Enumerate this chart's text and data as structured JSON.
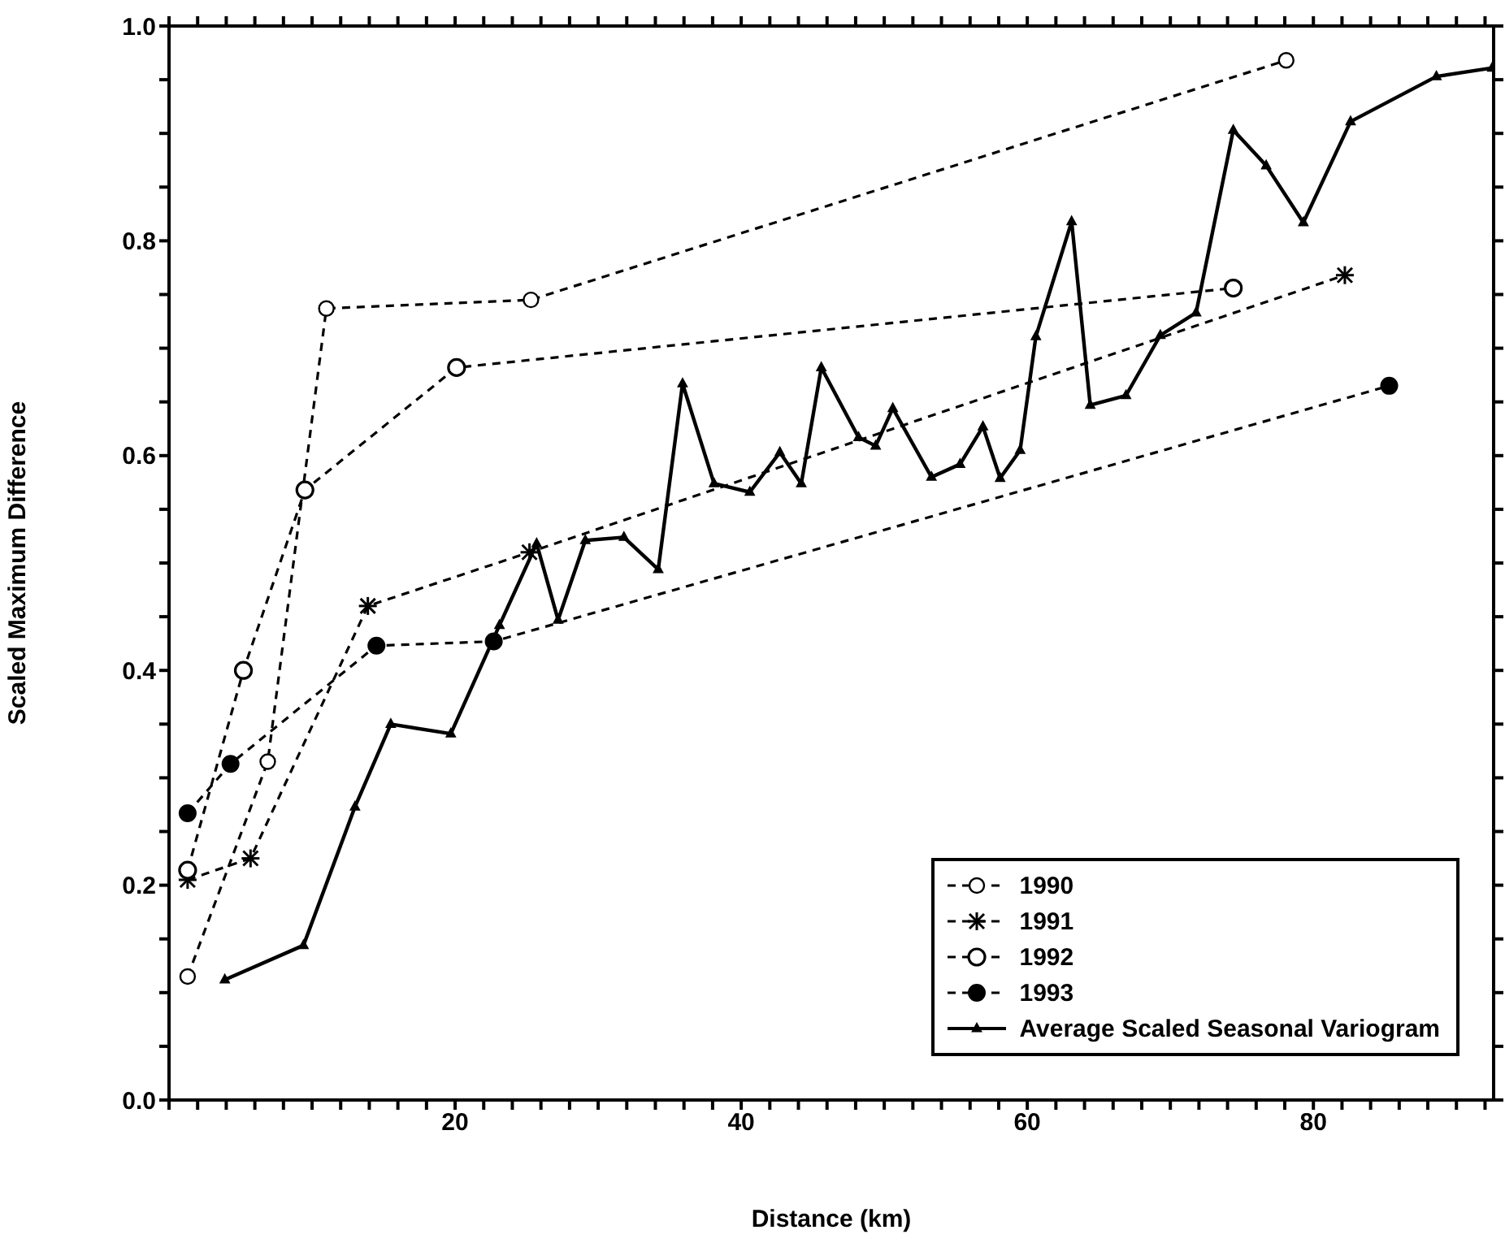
{
  "chart_data": {
    "type": "line",
    "xlabel": "Distance (km)",
    "ylabel": "Scaled Maximum Difference",
    "xlim": [
      0,
      92.6
    ],
    "ylim": [
      0,
      1.0
    ],
    "xticks": [
      {
        "value": 0,
        "label": null
      },
      {
        "value": 2,
        "label": null
      },
      {
        "value": 4,
        "label": null
      },
      {
        "value": 6,
        "label": null
      },
      {
        "value": 8,
        "label": null
      },
      {
        "value": 10,
        "label": null
      },
      {
        "value": 12,
        "label": null
      },
      {
        "value": 14,
        "label": null
      },
      {
        "value": 16,
        "label": null
      },
      {
        "value": 18,
        "label": null
      },
      20,
      {
        "value": 22,
        "label": null
      },
      {
        "value": 24,
        "label": null
      },
      {
        "value": 26,
        "label": null
      },
      {
        "value": 28,
        "label": null
      },
      {
        "value": 30,
        "label": null
      },
      {
        "value": 32,
        "label": null
      },
      {
        "value": 34,
        "label": null
      },
      {
        "value": 36,
        "label": null
      },
      {
        "value": 38,
        "label": null
      },
      40,
      {
        "value": 42,
        "label": null
      },
      {
        "value": 44,
        "label": null
      },
      {
        "value": 46,
        "label": null
      },
      {
        "value": 48,
        "label": null
      },
      {
        "value": 50,
        "label": null
      },
      {
        "value": 52,
        "label": null
      },
      {
        "value": 54,
        "label": null
      },
      {
        "value": 56,
        "label": null
      },
      {
        "value": 58,
        "label": null
      },
      60,
      {
        "value": 62,
        "label": null
      },
      {
        "value": 64,
        "label": null
      },
      {
        "value": 66,
        "label": null
      },
      {
        "value": 68,
        "label": null
      },
      {
        "value": 70,
        "label": null
      },
      {
        "value": 72,
        "label": null
      },
      {
        "value": 74,
        "label": null
      },
      {
        "value": 76,
        "label": null
      },
      {
        "value": 78,
        "label": null
      },
      80,
      {
        "value": 82,
        "label": null
      },
      {
        "value": 84,
        "label": null
      },
      {
        "value": 86,
        "label": null
      },
      {
        "value": 88,
        "label": null
      },
      {
        "value": 90,
        "label": null
      },
      {
        "value": 92,
        "label": null
      }
    ],
    "yticks": [
      {
        "value": 0,
        "label": "0.0"
      },
      {
        "value": 0.05,
        "label": null
      },
      {
        "value": 0.1,
        "label": null
      },
      {
        "value": 0.15,
        "label": null
      },
      0.2,
      {
        "value": 0.25,
        "label": null
      },
      {
        "value": 0.3,
        "label": null
      },
      {
        "value": 0.35,
        "label": null
      },
      0.4,
      {
        "value": 0.45,
        "label": null
      },
      {
        "value": 0.5,
        "label": null
      },
      {
        "value": 0.55,
        "label": null
      },
      0.6,
      {
        "value": 0.65,
        "label": null
      },
      {
        "value": 0.7,
        "label": null
      },
      {
        "value": 0.75,
        "label": null
      },
      0.8,
      {
        "value": 0.85,
        "label": null
      },
      {
        "value": 0.9,
        "label": null
      },
      {
        "value": 0.95,
        "label": null
      },
      {
        "value": 1.0,
        "label": "1.0"
      }
    ],
    "legend": "bottom right",
    "series": [
      {
        "name": "1990",
        "color": "#000000",
        "marker": "circle",
        "line_style": "dashed",
        "x": [
          1.3,
          6.9,
          11,
          25.3,
          78.1
        ],
        "values": [
          0.115,
          0.315,
          0.737,
          0.745,
          0.968
        ]
      },
      {
        "name": "1991",
        "color": "#000000",
        "marker": "cross",
        "line_style": "dashed",
        "x": [
          1.3,
          5.7,
          13.9,
          25.2,
          82.2
        ],
        "values": [
          0.205,
          0.225,
          0.46,
          0.51,
          0.768
        ]
      },
      {
        "name": "1992",
        "color": "#000000",
        "marker": "circle",
        "line_style": "dashed",
        "x": [
          1.3,
          5.2,
          9.5,
          20.1,
          74.4
        ],
        "values": [
          0.214,
          0.4,
          0.568,
          0.682,
          0.756
        ]
      },
      {
        "name": "1993",
        "color": "#000000",
        "marker": "circle",
        "line_style": "dashed",
        "x": [
          1.3,
          4.3,
          14.5,
          22.7,
          85.3
        ],
        "values": [
          0.267,
          0.313,
          0.423,
          0.427,
          0.665
        ]
      },
      {
        "name": "Average Scaled Seasonal Variogram",
        "color": "#000000",
        "marker": "triangle",
        "line_style": "solid",
        "x": [
          3.9,
          9.4,
          13,
          15.5,
          19.7,
          23.1,
          25.7,
          27.2,
          29.1,
          31.8,
          34.2,
          35.9,
          38.1,
          40.6,
          42.7,
          44.2,
          45.6,
          48.2,
          49.4,
          50.6,
          53.3,
          55.3,
          56.9,
          58.1,
          59.5,
          60.6,
          63.1,
          64.4,
          66.9,
          69.3,
          71.8,
          74.4,
          76.7,
          79.3,
          82.6,
          88.6,
          92.5
        ],
        "values": [
          0.112,
          0.144,
          0.273,
          0.35,
          0.341,
          0.442,
          0.518,
          0.447,
          0.521,
          0.524,
          0.494,
          0.667,
          0.574,
          0.566,
          0.603,
          0.574,
          0.682,
          0.617,
          0.609,
          0.644,
          0.58,
          0.592,
          0.627,
          0.579,
          0.605,
          0.711,
          0.818,
          0.647,
          0.656,
          0.712,
          0.733,
          0.903,
          0.87,
          0.817,
          0.911,
          0.953,
          0.961
        ]
      }
    ]
  }
}
